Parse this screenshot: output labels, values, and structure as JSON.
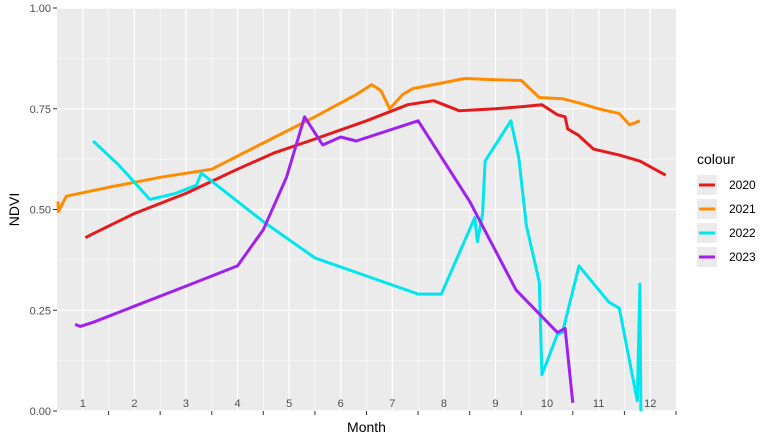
{
  "chart_data": {
    "type": "line",
    "xlabel": "Month",
    "ylabel": "NDVI",
    "legend_title": "colour",
    "legend_position": "right",
    "grid": true,
    "xlim": [
      0.5,
      12.5
    ],
    "ylim": [
      0,
      1
    ],
    "y_ticks": [
      "0.00",
      "0.25",
      "0.50",
      "0.75",
      "1.00"
    ],
    "y_tick_values": [
      0,
      0.25,
      0.5,
      0.75,
      1.0
    ],
    "month_labels": [
      "1",
      "2",
      "3",
      "4",
      "5",
      "6",
      "7",
      "8",
      "9",
      "10",
      "11",
      "12"
    ],
    "month_label_y": 0.02,
    "series": [
      {
        "name": "2020",
        "color": "#e41a1c",
        "points": [
          [
            1.05,
            0.43
          ],
          [
            1.2,
            0.44
          ],
          [
            2.0,
            0.49
          ],
          [
            3.0,
            0.54
          ],
          [
            4.0,
            0.6
          ],
          [
            4.7,
            0.64
          ],
          [
            5.5,
            0.675
          ],
          [
            6.5,
            0.72
          ],
          [
            7.3,
            0.76
          ],
          [
            7.8,
            0.77
          ],
          [
            8.3,
            0.745
          ],
          [
            9.0,
            0.75
          ],
          [
            9.5,
            0.755
          ],
          [
            9.9,
            0.76
          ],
          [
            10.2,
            0.735
          ],
          [
            10.35,
            0.73
          ],
          [
            10.4,
            0.7
          ],
          [
            10.6,
            0.685
          ],
          [
            10.9,
            0.65
          ],
          [
            11.4,
            0.635
          ],
          [
            11.8,
            0.62
          ],
          [
            12.3,
            0.585
          ]
        ]
      },
      {
        "name": "2021",
        "color": "#ff8c00",
        "points": [
          [
            0.52,
            0.52
          ],
          [
            0.53,
            0.495
          ],
          [
            0.68,
            0.533
          ],
          [
            1.5,
            0.555
          ],
          [
            2.5,
            0.58
          ],
          [
            3.5,
            0.6
          ],
          [
            4.5,
            0.665
          ],
          [
            5.5,
            0.73
          ],
          [
            6.3,
            0.785
          ],
          [
            6.6,
            0.81
          ],
          [
            6.78,
            0.795
          ],
          [
            6.95,
            0.75
          ],
          [
            7.2,
            0.785
          ],
          [
            7.4,
            0.8
          ],
          [
            8.0,
            0.815
          ],
          [
            8.4,
            0.825
          ],
          [
            9.0,
            0.822
          ],
          [
            9.5,
            0.82
          ],
          [
            9.85,
            0.778
          ],
          [
            10.3,
            0.775
          ],
          [
            10.6,
            0.765
          ],
          [
            11.0,
            0.75
          ],
          [
            11.4,
            0.738
          ],
          [
            11.6,
            0.71
          ],
          [
            11.8,
            0.72
          ]
        ]
      },
      {
        "name": "2022",
        "color": "#00e5ee",
        "points": [
          [
            1.2,
            0.67
          ],
          [
            1.7,
            0.61
          ],
          [
            2.3,
            0.525
          ],
          [
            2.8,
            0.54
          ],
          [
            3.2,
            0.56
          ],
          [
            3.3,
            0.59
          ],
          [
            4.5,
            0.47
          ],
          [
            5.5,
            0.38
          ],
          [
            6.5,
            0.335
          ],
          [
            7.5,
            0.29
          ],
          [
            7.95,
            0.29
          ],
          [
            8.6,
            0.48
          ],
          [
            8.65,
            0.42
          ],
          [
            8.75,
            0.49
          ],
          [
            8.8,
            0.62
          ],
          [
            9.3,
            0.72
          ],
          [
            9.45,
            0.63
          ],
          [
            9.6,
            0.46
          ],
          [
            9.85,
            0.32
          ],
          [
            9.9,
            0.09
          ],
          [
            10.2,
            0.19
          ],
          [
            10.3,
            0.195
          ],
          [
            10.62,
            0.36
          ],
          [
            11.2,
            0.27
          ],
          [
            11.4,
            0.255
          ],
          [
            11.75,
            0.025
          ],
          [
            11.8,
            0.315
          ],
          [
            11.82,
            0.0
          ]
        ]
      },
      {
        "name": "2023",
        "color": "#a020f0",
        "points": [
          [
            0.85,
            0.215
          ],
          [
            0.95,
            0.21
          ],
          [
            1.2,
            0.22
          ],
          [
            2.0,
            0.26
          ],
          [
            3.0,
            0.31
          ],
          [
            4.0,
            0.36
          ],
          [
            4.5,
            0.45
          ],
          [
            4.95,
            0.58
          ],
          [
            5.3,
            0.73
          ],
          [
            5.65,
            0.66
          ],
          [
            6.0,
            0.68
          ],
          [
            6.3,
            0.67
          ],
          [
            7.5,
            0.72
          ],
          [
            8.5,
            0.52
          ],
          [
            9.4,
            0.3
          ],
          [
            10.2,
            0.195
          ],
          [
            10.35,
            0.205
          ],
          [
            10.5,
            0.02
          ]
        ]
      }
    ]
  }
}
